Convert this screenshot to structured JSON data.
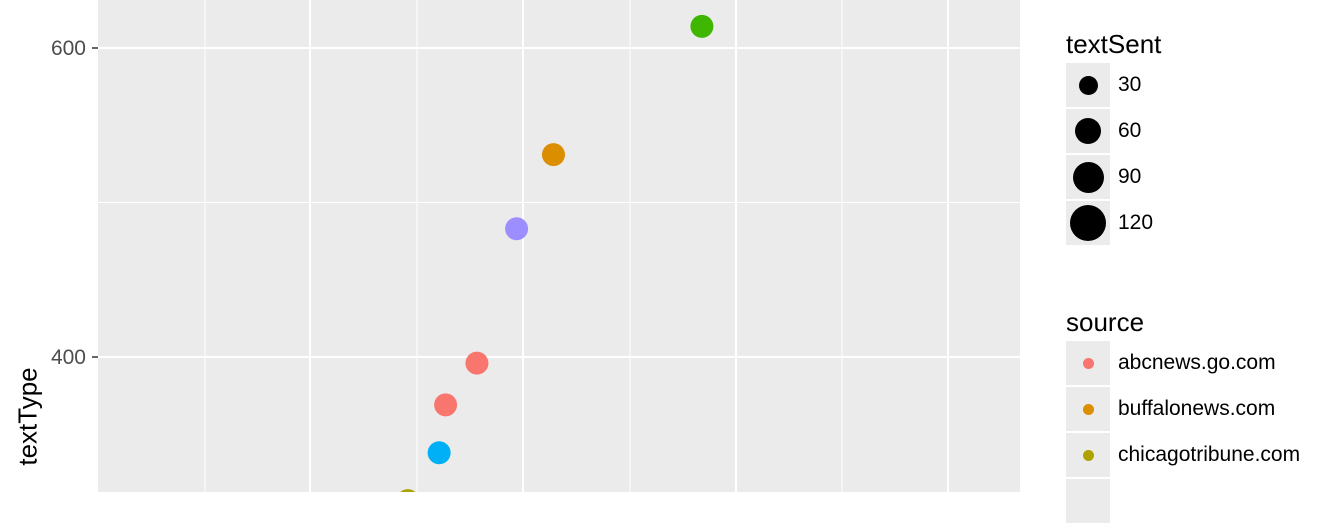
{
  "chart_data": {
    "type": "scatter",
    "title": "",
    "xlabel": "",
    "ylabel": "textType",
    "yticks": [
      400,
      600
    ],
    "ylim": [
      305,
      630
    ],
    "xlim": [
      0,
      10
    ],
    "grid": true,
    "legend_position": "right",
    "points": [
      {
        "x": 6.55,
        "y": 614,
        "source": "unlisted-green"
      },
      {
        "x": 4.94,
        "y": 531,
        "source": "buffalonews.com"
      },
      {
        "x": 4.54,
        "y": 483,
        "source": "unlisted-purple"
      },
      {
        "x": 4.11,
        "y": 396,
        "source": "abcnews.go.com"
      },
      {
        "x": 3.77,
        "y": 369,
        "source": "abcnews.go.com"
      },
      {
        "x": 3.7,
        "y": 338,
        "source": "unlisted-blue"
      },
      {
        "x": 3.36,
        "y": 307,
        "source": "chicagotribune.com"
      }
    ]
  },
  "colors": {
    "abcnews.go.com": "#f8766d",
    "buffalonews.com": "#db8e00",
    "chicagotribune.com": "#aea200",
    "unlisted-green": "#3fb600",
    "unlisted-purple": "#9c8eff",
    "unlisted-blue": "#00b0f6"
  },
  "legend_size": {
    "title": "textSent",
    "items": [
      {
        "label": "30",
        "value": 30
      },
      {
        "label": "60",
        "value": 60
      },
      {
        "label": "90",
        "value": 90
      },
      {
        "label": "120",
        "value": 120
      }
    ]
  },
  "legend_source": {
    "title": "source",
    "items": [
      {
        "label": "abcnews.go.com"
      },
      {
        "label": "buffalonews.com"
      },
      {
        "label": "chicagotribune.com"
      }
    ]
  }
}
